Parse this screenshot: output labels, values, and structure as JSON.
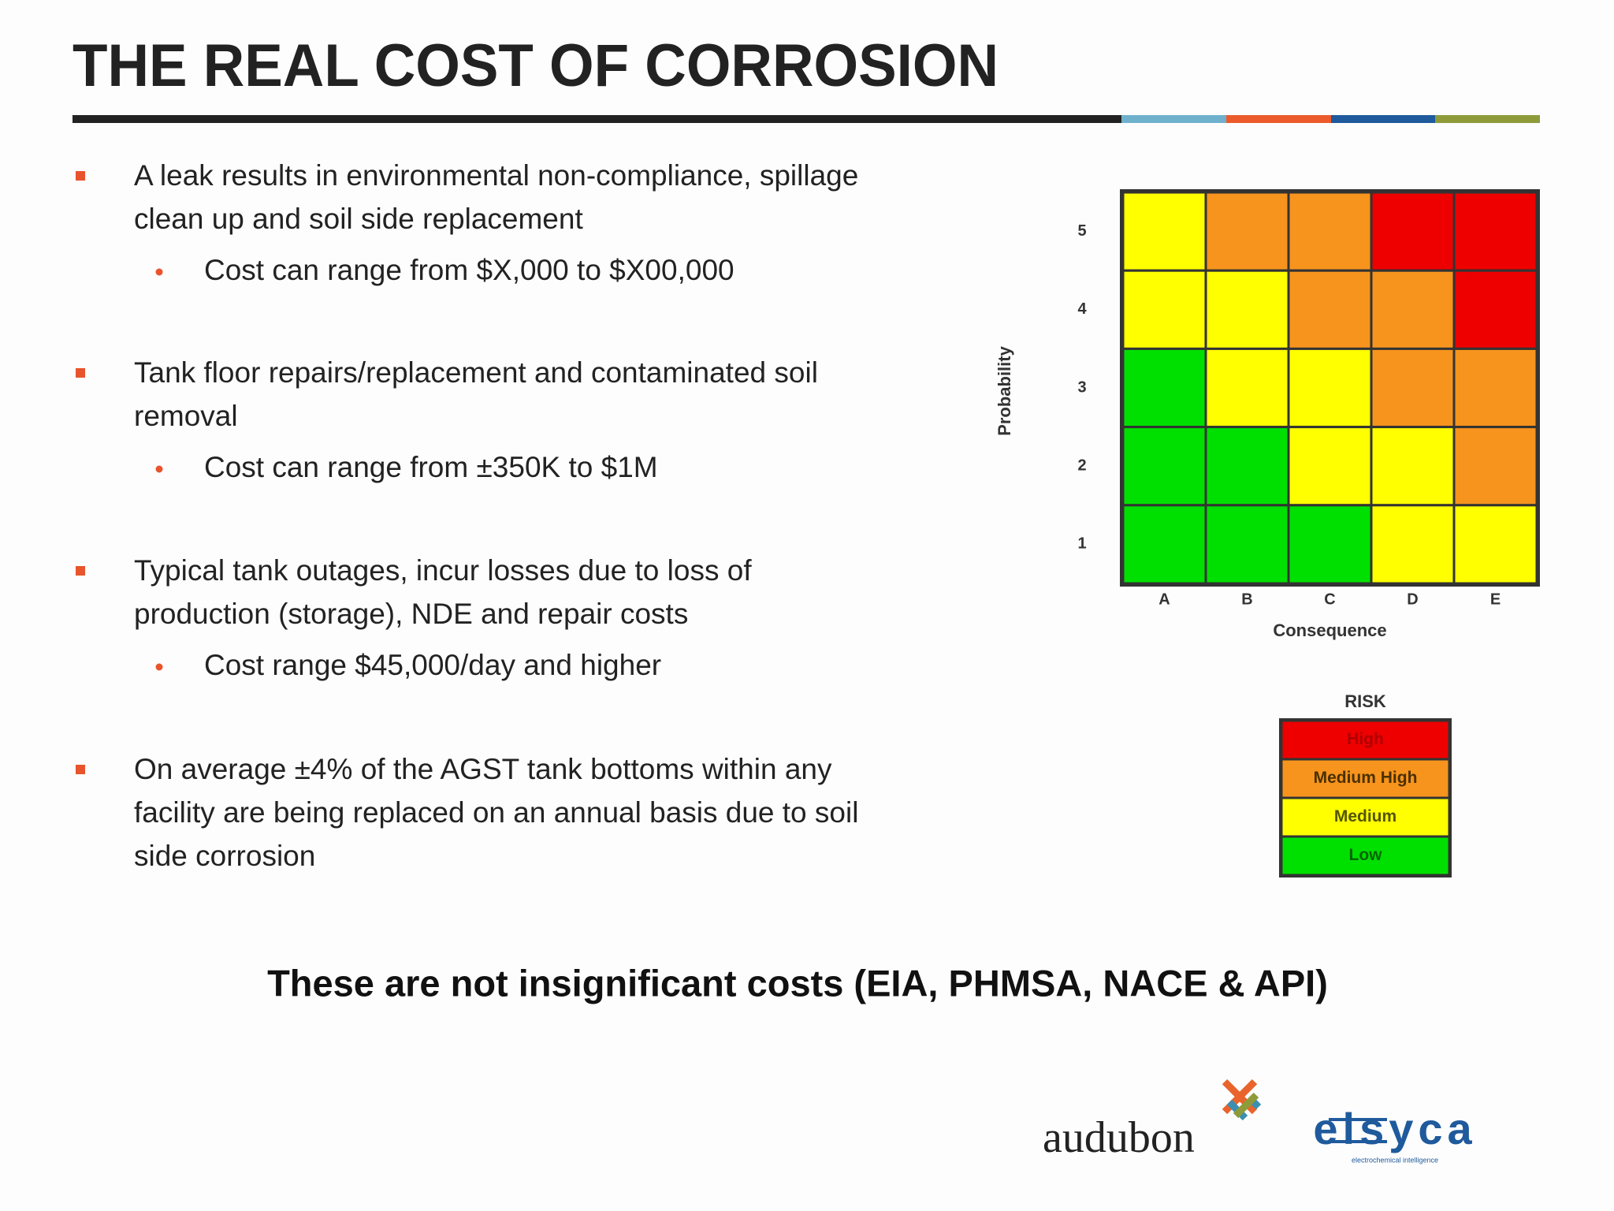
{
  "header": {
    "title": "THE REAL COST OF CORROSION"
  },
  "bullets": [
    {
      "lines": [
        "A leak results in environmental non-compliance, spillage",
        "clean up and soil side replacement"
      ],
      "sub": "Cost can range from $X,000 to $X00,000"
    },
    {
      "lines": [
        "Tank floor repairs/replacement and  contaminated soil",
        "removal"
      ],
      "sub": "Cost can range from ±350K to $1M"
    },
    {
      "lines": [
        "Typical tank outages, incur losses due to loss of",
        "production (storage), NDE and repair costs"
      ],
      "sub": "Cost range $45,000/day and higher"
    },
    {
      "lines": [
        "On average ±4% of the AGST tank bottoms within any",
        "facility are being replaced on an annual basis due to soil",
        "side corrosion"
      ]
    }
  ],
  "risk_matrix": {
    "x_label": "Consequence",
    "y_label": "Probability",
    "columns": [
      "A",
      "B",
      "C",
      "D",
      "E"
    ],
    "rows": [
      {
        "label": "5",
        "cells": [
          "#ffff00",
          "#f7941d",
          "#f7941d",
          "#ee0000",
          "#ee0000"
        ]
      },
      {
        "label": "4",
        "cells": [
          "#ffff00",
          "#ffff00",
          "#f7941d",
          "#f7941d",
          "#ee0000"
        ]
      },
      {
        "label": "3",
        "cells": [
          "#00e000",
          "#ffff00",
          "#ffff00",
          "#f7941d",
          "#f7941d"
        ]
      },
      {
        "label": "2",
        "cells": [
          "#00e000",
          "#00e000",
          "#ffff00",
          "#ffff00",
          "#f7941d"
        ]
      },
      {
        "label": "1",
        "cells": [
          "#00e000",
          "#00e000",
          "#00e000",
          "#ffff00",
          "#ffff00"
        ]
      }
    ]
  },
  "legend": {
    "title": "RISK",
    "levels": [
      {
        "label": "High",
        "color": "#ee0000",
        "text_color": "#b00000"
      },
      {
        "label": "Medium High",
        "color": "#f7941d",
        "text_color": "#4a3000"
      },
      {
        "label": "Medium",
        "color": "#ffff00",
        "text_color": "#555500"
      },
      {
        "label": "Low",
        "color": "#00e000",
        "text_color": "#006600"
      }
    ]
  },
  "footer": {
    "note": "These are not insignificant costs (EIA, PHMSA, NACE & API)"
  },
  "logos": {
    "audubon": "audubon",
    "elsyca": "elsyca",
    "elsyca_tagline": "electrochemical intelligence"
  }
}
